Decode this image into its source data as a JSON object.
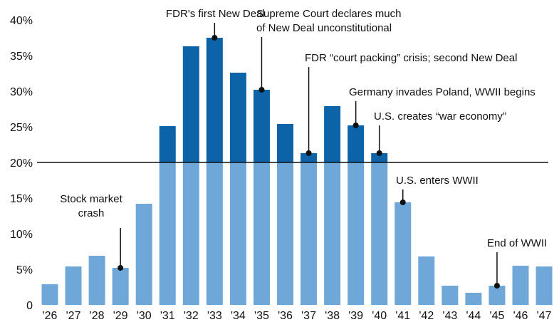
{
  "chart_data": {
    "type": "bar",
    "title": "",
    "xlabel": "",
    "ylabel": "",
    "categories": [
      "'26",
      "'27",
      "'28",
      "'29",
      "'30",
      "'31",
      "'32",
      "'33",
      "'34",
      "'35",
      "'36",
      "'37",
      "'38",
      "'39",
      "'40",
      "'41",
      "'42",
      "'43",
      "'44",
      "'45",
      "'46",
      "'47"
    ],
    "values": [
      2.9,
      5.4,
      6.9,
      5.2,
      14.2,
      25.1,
      36.3,
      37.5,
      32.6,
      30.2,
      25.4,
      21.3,
      27.9,
      25.2,
      21.3,
      14.4,
      6.8,
      2.7,
      1.7,
      2.7,
      5.5,
      5.4
    ],
    "ylim": [
      0,
      40
    ],
    "yticks": [
      0,
      5,
      10,
      15,
      20,
      25,
      30,
      35,
      40
    ],
    "ytick_labels": [
      "0",
      "5%",
      "10%",
      "15%",
      "20%",
      "25%",
      "30%",
      "35%",
      "40%"
    ],
    "grid": false,
    "reference_line": 20,
    "colors": {
      "below_line": "#6fa8d8",
      "above_line": "#0d63a8",
      "reference_line": "#111111",
      "marker": "#111111"
    },
    "annotations": [
      {
        "index": 3,
        "value": 5.2,
        "lines": [
          "Stock market",
          "crash"
        ]
      },
      {
        "index": 7,
        "value": 37.5,
        "lines": [
          "FDR's first New Deal"
        ]
      },
      {
        "index": 9,
        "value": 30.2,
        "lines": [
          "Supreme Court declares much",
          "of New Deal unconstitutional"
        ]
      },
      {
        "index": 11,
        "value": 21.3,
        "lines": [
          "FDR “court packing” crisis; second New Deal"
        ]
      },
      {
        "index": 13,
        "value": 25.2,
        "lines": [
          "Germany invades Poland, WWII begins"
        ]
      },
      {
        "index": 14,
        "value": 21.3,
        "lines": [
          "U.S. creates “war economy”"
        ]
      },
      {
        "index": 15,
        "value": 14.4,
        "lines": [
          "U.S. enters WWII"
        ]
      },
      {
        "index": 19,
        "value": 2.7,
        "lines": [
          "End of WWII"
        ]
      }
    ]
  }
}
